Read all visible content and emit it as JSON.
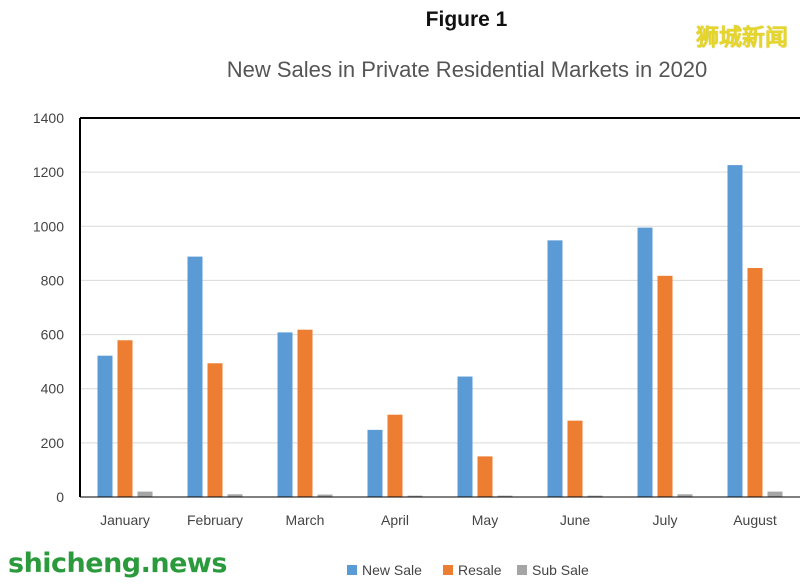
{
  "figure_label": "Figure 1",
  "watermark": {
    "top_right": "狮城新闻",
    "bottom_left": "shicheng.news"
  },
  "colors": {
    "new_sale": "#5b9bd5",
    "resale": "#ed7d31",
    "sub_sale": "#a5a5a5",
    "axis": "#000000",
    "grid": "#d9d9d9"
  },
  "chart_data": {
    "type": "bar",
    "title": "New Sales in Private Residential Markets in 2020",
    "xlabel": "",
    "ylabel": "",
    "categories": [
      "January",
      "February",
      "March",
      "April",
      "May",
      "June",
      "July",
      "August"
    ],
    "series": [
      {
        "name": "New Sale",
        "values": [
          522,
          888,
          608,
          248,
          445,
          948,
          995,
          1226
        ]
      },
      {
        "name": "Resale",
        "values": [
          579,
          494,
          618,
          304,
          150,
          282,
          817,
          846
        ]
      },
      {
        "name": "Sub Sale",
        "values": [
          20,
          10,
          9,
          5,
          5,
          5,
          10,
          20
        ]
      }
    ],
    "ylim": [
      0,
      1400
    ],
    "yticks": [
      0,
      200,
      400,
      600,
      800,
      1000,
      1200,
      1400
    ],
    "grid": true,
    "legend": "bottom"
  }
}
